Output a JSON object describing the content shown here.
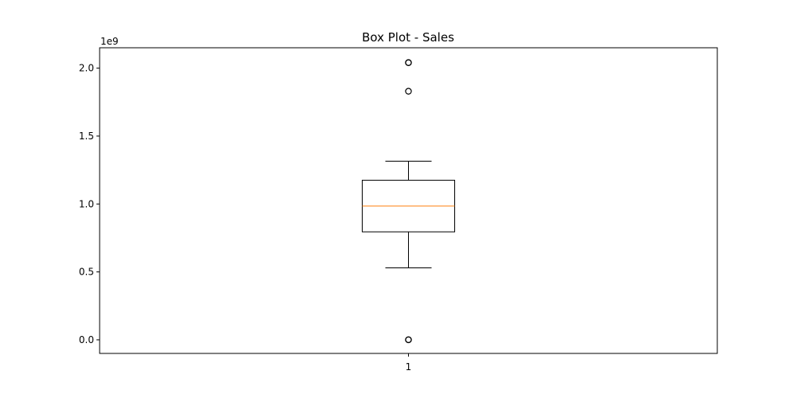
{
  "chart_data": {
    "type": "box",
    "title": "Box Plot - Sales",
    "xlabel": "",
    "ylabel": "",
    "y_offset_label": "1e9",
    "categories": [
      "1"
    ],
    "ylim": [
      -100000000.0,
      2150000000.0
    ],
    "y_ticks": [
      0.0,
      500000000.0,
      1000000000.0,
      1500000000.0,
      2000000000.0
    ],
    "y_tick_labels": [
      "0.0",
      "0.5",
      "1.0",
      "1.5",
      "2.0"
    ],
    "boxes": [
      {
        "name": "1",
        "whisker_low": 530000000.0,
        "q1": 795000000.0,
        "median": 985000000.0,
        "q3": 1175000000.0,
        "whisker_high": 1315000000.0,
        "outliers": [
          0.0,
          1000000.0,
          1830000000.0,
          2040000000.0,
          2041000000.0
        ]
      }
    ],
    "grid": false,
    "colors": {
      "box": "#000000",
      "median": "#ff7f0e",
      "outlier": "#000000"
    }
  }
}
